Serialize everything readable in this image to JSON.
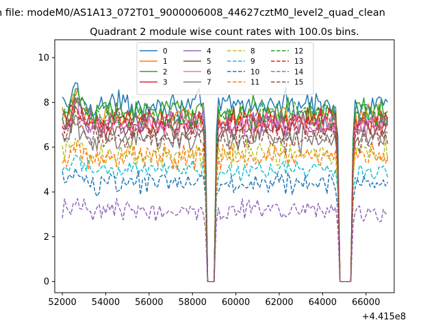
{
  "suptitle": "n file: modeM0/AS1A13_072T01_9000006008_44627cztM0_level2_quad_clean",
  "chart_data": {
    "type": "line",
    "title": "Quadrant 2 module wise count rates with 100.0s bins.",
    "xlabel": "",
    "ylabel": "",
    "x_offset_label": "+4.415e8",
    "xlim": [
      51650,
      67300
    ],
    "ylim": [
      -0.5,
      10.8
    ],
    "xticks": [
      52000,
      54000,
      56000,
      58000,
      60000,
      62000,
      64000,
      66000
    ],
    "yticks": [
      0,
      2,
      4,
      6,
      8,
      10
    ],
    "xtick_labels": [
      "52000",
      "54000",
      "56000",
      "58000",
      "60000",
      "62000",
      "64000",
      "66000"
    ],
    "ytick_labels": [
      "0",
      "2",
      "4",
      "6",
      "8",
      "10"
    ],
    "x_range": [
      52000,
      67000
    ],
    "bin_size": 100,
    "gaps": [
      [
        58700,
        59000
      ],
      [
        64800,
        65300
      ]
    ],
    "legend_position": "upper-center",
    "legend_columns": 4,
    "series": [
      {
        "name": "0",
        "color": "#1f77b4",
        "style": "solid",
        "mean": 7.9
      },
      {
        "name": "1",
        "color": "#ff7f0e",
        "style": "solid",
        "mean": 7.3
      },
      {
        "name": "2",
        "color": "#2ca02c",
        "style": "solid",
        "mean": 7.6
      },
      {
        "name": "3",
        "color": "#d62728",
        "style": "solid",
        "mean": 7.2
      },
      {
        "name": "4",
        "color": "#9467bd",
        "style": "solid",
        "mean": 7.1
      },
      {
        "name": "5",
        "color": "#8c564b",
        "style": "solid",
        "mean": 6.8
      },
      {
        "name": "6",
        "color": "#e377c2",
        "style": "solid",
        "mean": 7.0
      },
      {
        "name": "7",
        "color": "#7f7f7f",
        "style": "solid",
        "mean": 6.4
      },
      {
        "name": "8",
        "color": "#bcbd22",
        "style": "dashed",
        "mean": 5.7
      },
      {
        "name": "9",
        "color": "#17becf",
        "style": "dashed",
        "mean": 5.0
      },
      {
        "name": "10",
        "color": "#1f77b4",
        "style": "dashed",
        "mean": 4.4
      },
      {
        "name": "11",
        "color": "#ff7f0e",
        "style": "dashed",
        "mean": 5.6
      },
      {
        "name": "12",
        "color": "#2ca02c",
        "style": "dashed",
        "mean": 7.4
      },
      {
        "name": "13",
        "color": "#d62728",
        "style": "dashed",
        "mean": 7.0
      },
      {
        "name": "14",
        "color": "#9467bd",
        "style": "dashed",
        "mean": 3.2
      },
      {
        "name": "15",
        "color": "#8c564b",
        "style": "dashed",
        "mean": 6.4
      }
    ]
  }
}
